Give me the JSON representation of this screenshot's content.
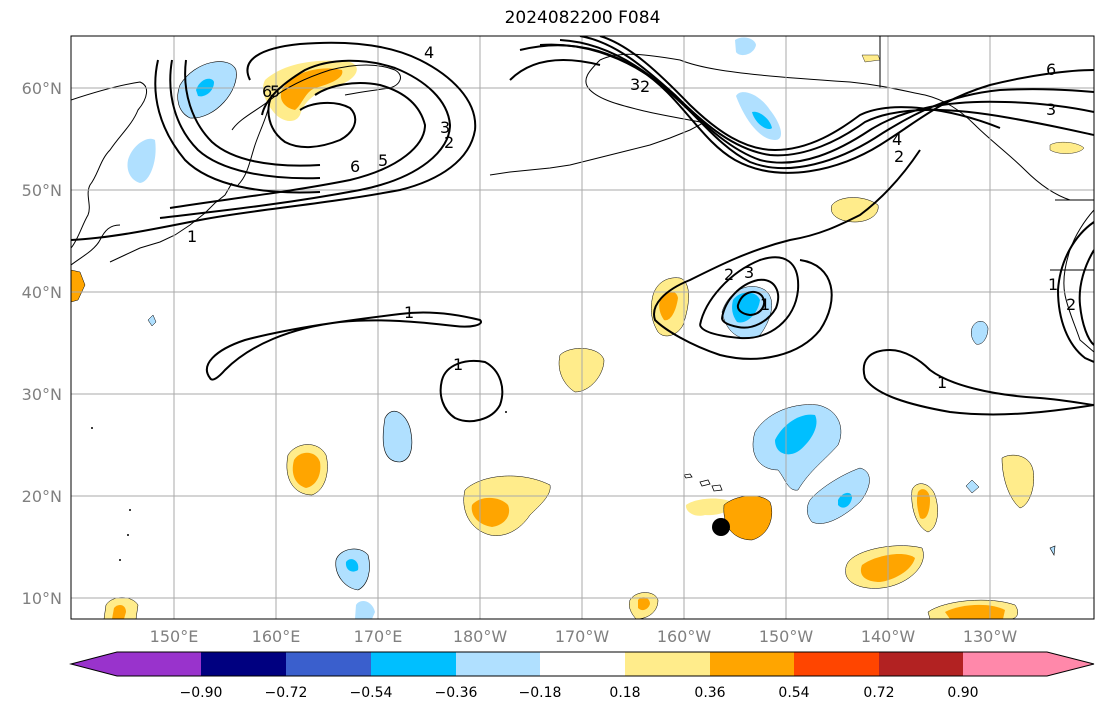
{
  "title": "2024082200 F084",
  "map": {
    "lat_labels": [
      "60°N",
      "50°N",
      "40°N",
      "30°N",
      "20°N",
      "10°N"
    ],
    "lon_labels": [
      "150°E",
      "160°E",
      "170°E",
      "180°W",
      "170°W",
      "160°W",
      "150°W",
      "140°W",
      "130°W"
    ],
    "contour_labels": [
      "6",
      "3",
      "4",
      "2",
      "3",
      "2",
      "6",
      "5",
      "6",
      "5",
      "4",
      "3",
      "2",
      "1",
      "1",
      "1",
      "2",
      "3",
      "1",
      "1",
      "2",
      "1"
    ],
    "marker": "storm-position-dot"
  },
  "colorbar": {
    "colors": [
      "#9933cc",
      "#000080",
      "#3a5fcd",
      "#00bfff",
      "#b0e0ff",
      "#ffffff",
      "#ffec8b",
      "#ffa500",
      "#ff4500",
      "#b22222",
      "#ff88aa"
    ],
    "tick_labels": [
      "−0.90",
      "−0.72",
      "−0.54",
      "−0.36",
      "−0.18",
      "0.18",
      "0.36",
      "0.54",
      "0.72",
      "0.90"
    ]
  }
}
